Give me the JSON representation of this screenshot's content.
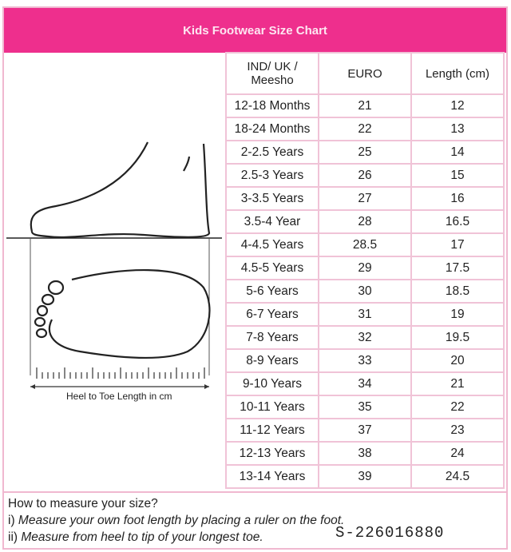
{
  "title": "Kids Footwear Size Chart",
  "table": {
    "headers": [
      "IND/ UK / Meesho",
      "EURO",
      "Length (cm)"
    ],
    "rows": [
      [
        "12-18 Months",
        "21",
        "12"
      ],
      [
        "18-24 Months",
        "22",
        "13"
      ],
      [
        "2-2.5 Years",
        "25",
        "14"
      ],
      [
        "2.5-3 Years",
        "26",
        "15"
      ],
      [
        "3-3.5 Years",
        "27",
        "16"
      ],
      [
        "3.5-4 Year",
        "28",
        "16.5"
      ],
      [
        "4-4.5 Years",
        "28.5",
        "17"
      ],
      [
        "4.5-5 Years",
        "29",
        "17.5"
      ],
      [
        "5-6 Years",
        "30",
        "18.5"
      ],
      [
        "6-7 Years",
        "31",
        "19"
      ],
      [
        "7-8 Years",
        "32",
        "19.5"
      ],
      [
        "8-9 Years",
        "33",
        "20"
      ],
      [
        "9-10 Years",
        "34",
        "21"
      ],
      [
        "10-11 Years",
        "35",
        "22"
      ],
      [
        "11-12 Years",
        "37",
        "23"
      ],
      [
        "12-13 Years",
        "38",
        "24"
      ],
      [
        "13-14 Years",
        "39",
        "24.5"
      ]
    ]
  },
  "illustration": {
    "ruler_label": "Heel to Toe Length in cm"
  },
  "footer": {
    "heading": "How to measure your size?",
    "step1_prefix": "i) ",
    "step1": "Measure your own foot length by placing a ruler on the foot.",
    "step2_prefix": "ii) ",
    "step2": "Measure from heel to tip of your longest toe."
  },
  "watermark": "S-226016880",
  "colors": {
    "header_bg": "#ee2f8d",
    "border": "#f0c3d7"
  }
}
